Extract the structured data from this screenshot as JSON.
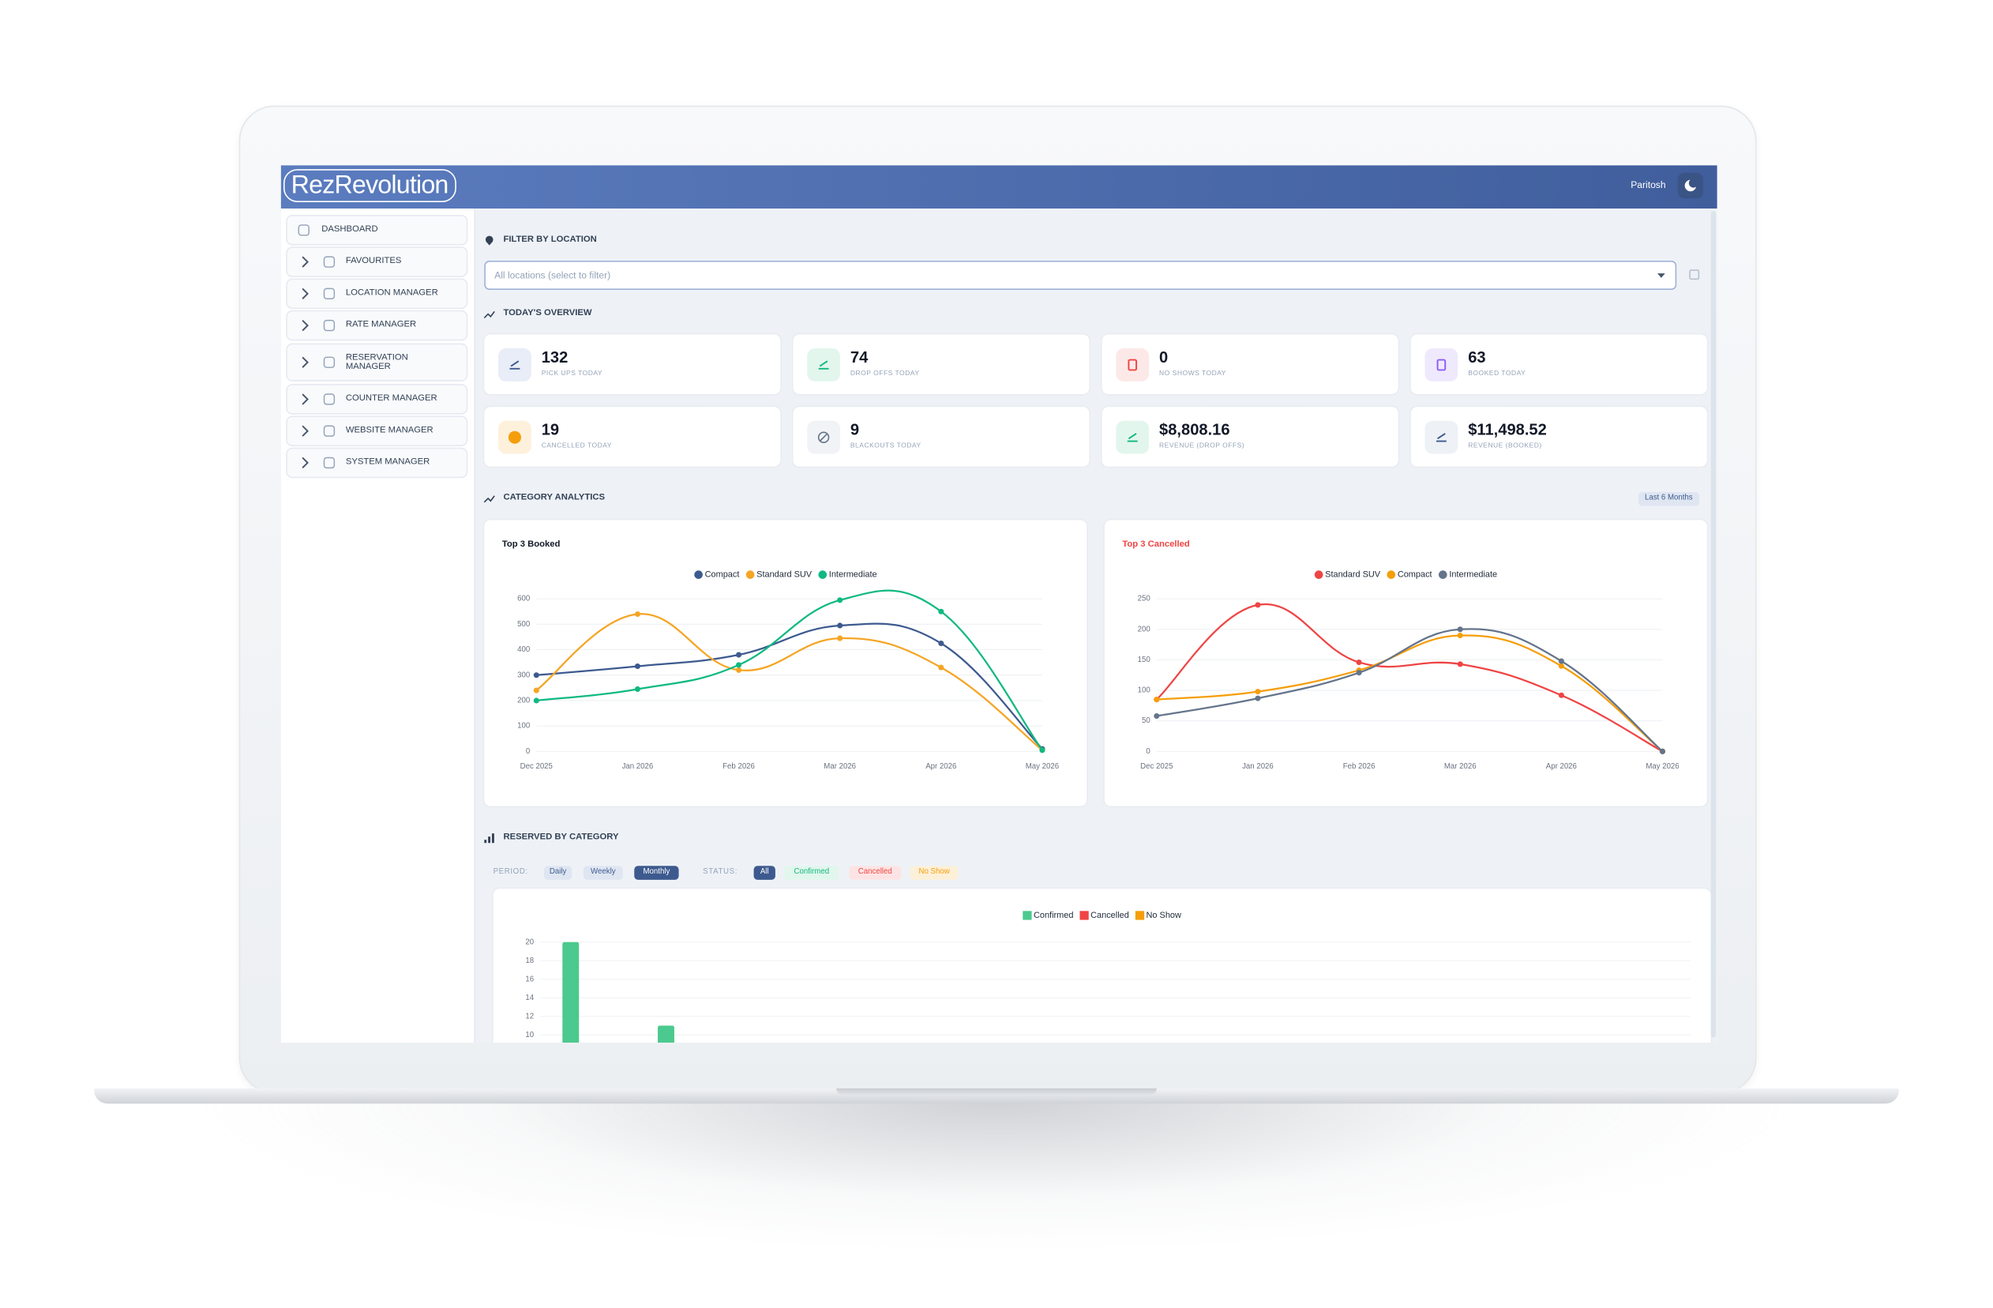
{
  "header": {
    "logo": "RezRevolution",
    "user": "Paritosh"
  },
  "sidebar": {
    "items": [
      "DASHBOARD",
      "FAVOURITES",
      "LOCATION MANAGER",
      "RATE MANAGER",
      "RESERVATION MANAGER",
      "COUNTER MANAGER",
      "WEBSITE MANAGER",
      "SYSTEM MANAGER"
    ]
  },
  "filter": {
    "title": "FILTER BY LOCATION",
    "placeholder": "All locations (select to filter)"
  },
  "overview": {
    "title": "TODAY'S OVERVIEW",
    "cards": [
      {
        "value": 132,
        "label": "PICK UPS TODAY"
      },
      {
        "value": 74,
        "label": "DROP OFFS TODAY"
      },
      {
        "value": 0,
        "label": "NO SHOWS TODAY"
      },
      {
        "value": 63,
        "label": "BOOKED TODAY"
      },
      {
        "value": 19,
        "label": "CANCELLED TODAY"
      },
      {
        "value": 9,
        "label": "BLACKOUTS TODAY"
      },
      {
        "value": "$8,808.16",
        "label": "REVENUE (DROP OFFS)"
      },
      {
        "value": "$11,498.52",
        "label": "REVENUE (BOOKED)"
      }
    ]
  },
  "analytics": {
    "title": "CATEGORY ANALYTICS",
    "range": "Last 6 Months",
    "charts": [
      {
        "type": "line",
        "title": "Top 3 Booked",
        "title_color": "#111827",
        "x": [
          "Dec 2025",
          "Jan 2026",
          "Feb 2026",
          "Mar 2026",
          "Apr 2026",
          "May 2026"
        ],
        "series": [
          {
            "name": "Compact",
            "color": "#3d5a8f",
            "values": [
              300,
              335,
              380,
              495,
              425,
              10
            ]
          },
          {
            "name": "Standard SUV",
            "color": "#f5a524",
            "values": [
              240,
              540,
              320,
              445,
              330,
              5
            ]
          },
          {
            "name": "Intermediate",
            "color": "#10b981",
            "values": [
              200,
              245,
              340,
              595,
              550,
              5
            ]
          }
        ],
        "ylim": [
          0,
          600
        ],
        "yticks": [
          0,
          100,
          200,
          300,
          400,
          500,
          600
        ],
        "grid": true
      },
      {
        "type": "line",
        "title": "Top 3 Cancelled",
        "title_color": "#ef4444",
        "x": [
          "Dec 2025",
          "Jan 2026",
          "Feb 2026",
          "Mar 2026",
          "Apr 2026",
          "May 2026"
        ],
        "series": [
          {
            "name": "Standard SUV",
            "color": "#ef4444",
            "values": [
              85,
              240,
              146,
              143,
              92,
              0
            ]
          },
          {
            "name": "Compact",
            "color": "#f59e0b",
            "values": [
              85,
              98,
              133,
              190,
              140,
              0
            ]
          },
          {
            "name": "Intermediate",
            "color": "#64748b",
            "values": [
              58,
              87,
              129,
              200,
              148,
              0
            ]
          }
        ],
        "ylim": [
          0,
          250
        ],
        "yticks": [
          0,
          50,
          100,
          150,
          200,
          250
        ],
        "grid": true
      }
    ]
  },
  "reserved": {
    "title": "RESERVED BY CATEGORY",
    "period_label": "PERIOD:",
    "periods": [
      "Daily",
      "Weekly",
      "Monthly"
    ],
    "status_label": "STATUS:",
    "statuses": [
      "All",
      "Confirmed",
      "Cancelled",
      "No Show"
    ],
    "chart": {
      "type": "bar",
      "categories": [
        null,
        null
      ],
      "series": [
        {
          "name": "Confirmed",
          "color": "#4cc98e",
          "values": [
            20,
            11
          ]
        },
        {
          "name": "Cancelled",
          "color": "#ef4444",
          "values": [
            null,
            null
          ]
        },
        {
          "name": "No Show",
          "color": "#f59e0b",
          "values": [
            null,
            null
          ]
        }
      ],
      "ylim": [
        0,
        20
      ],
      "yticks": [
        10,
        12,
        14,
        16,
        18,
        20
      ],
      "grid": true
    }
  }
}
